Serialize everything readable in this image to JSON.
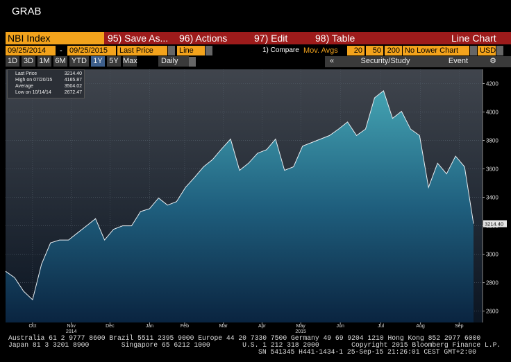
{
  "header": {
    "title": "GRAB"
  },
  "toolbar": {
    "security": "NBI Index",
    "menus": [
      "95) Save As...",
      "96) Actions",
      "97) Edit",
      "98) Table"
    ],
    "view": "Line Chart"
  },
  "controls": {
    "start_date": "09/25/2014",
    "separator": "-",
    "end_date": "09/25/2015",
    "field": "Last Price",
    "style": "Line",
    "compare": "1) Compare",
    "studies": "Mov. Avgs",
    "averages": [
      "20",
      "50",
      "200"
    ],
    "lower_chart": "No Lower Chart",
    "currency": "USD"
  },
  "periods": [
    "1D",
    "3D",
    "1M",
    "6M",
    "YTD",
    "1Y",
    "5Y",
    "Max"
  ],
  "frequency": "Daily",
  "tools": {
    "collapse": "«",
    "security_study": "Security/Study",
    "event": "Event"
  },
  "chart_data": {
    "type": "area",
    "values": [
      2880,
      2835,
      2740,
      2680,
      2930,
      3080,
      3100,
      3100,
      3150,
      3200,
      3250,
      3100,
      3175,
      3200,
      3200,
      3300,
      3320,
      3395,
      3345,
      3370,
      3470,
      3540,
      3615,
      3665,
      3740,
      3810,
      3590,
      3640,
      3710,
      3735,
      3810,
      3590,
      3615,
      3760,
      3785,
      3810,
      3835,
      3880,
      3930,
      3835,
      3880,
      4100,
      4150,
      3955,
      4005,
      3880,
      3835,
      3470,
      3640,
      3565,
      3690,
      3615,
      3214.4
    ],
    "xlim": [
      0,
      53
    ],
    "xticks": [
      {
        "value": 3.0,
        "label": "Oct"
      },
      {
        "value": 7.3,
        "label": "Nov"
      },
      {
        "value": 11.6,
        "label": "Dec"
      },
      {
        "value": 16.0,
        "label": "Jan"
      },
      {
        "value": 19.9,
        "label": "Feb"
      },
      {
        "value": 24.2,
        "label": "Mar"
      },
      {
        "value": 28.5,
        "label": "Apr"
      },
      {
        "value": 32.8,
        "label": "May"
      },
      {
        "value": 37.2,
        "label": "Jun"
      },
      {
        "value": 41.7,
        "label": "Jul"
      },
      {
        "value": 46.1,
        "label": "Aug"
      },
      {
        "value": 50.4,
        "label": "Sep"
      }
    ],
    "xyears": [
      {
        "value": 7.3,
        "label": "2014"
      },
      {
        "value": 32.8,
        "label": "2015"
      }
    ],
    "ylim": [
      2520,
      4300
    ],
    "yticks": [
      2600,
      2800,
      3000,
      3200,
      3400,
      3600,
      3800,
      4000,
      4200
    ],
    "color": "#4aa6b4",
    "grid": true,
    "stats": [
      {
        "label": "Last Price",
        "value": "3214.40"
      },
      {
        "label": "High on 07/20/15",
        "value": "4165.87"
      },
      {
        "label": "Average",
        "value": "3504.02"
      },
      {
        "label": "Low on 10/14/14",
        "value": "2672.47"
      }
    ]
  },
  "footer": [
    "Australia 61 2 9777 8600 Brazil 5511 2395 9000 Europe 44 20 7330 7500 Germany 49 69 9204 1210 Hong Kong 852 2977 6000",
    "Japan 81 3 3201 8900        Singapore 65 6212 1000        U.S. 1 212 318 2000        Copyright 2015 Bloomberg Finance L.P.",
    "SN 541345 H441-1434-1 25-Sep-15 21:26:01 CEST GMT+2:00"
  ]
}
